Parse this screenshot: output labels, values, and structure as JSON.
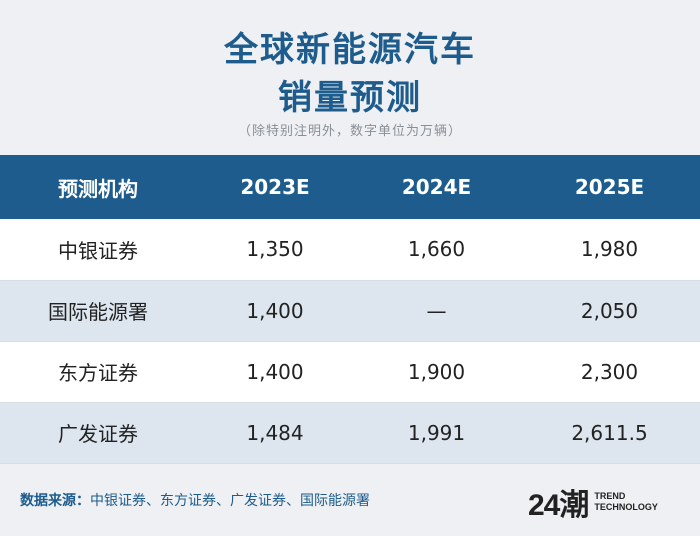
{
  "title_line1": "全球新能源汽车",
  "title_line2": "销量预测",
  "subtitle": "（除特别注明外，数字单位为万辆）",
  "chart_data": {
    "type": "table",
    "columns": [
      "预测机构",
      "2023E",
      "2024E",
      "2025E"
    ],
    "rows": [
      [
        "中银证券",
        "1,350",
        "1,660",
        "1,980"
      ],
      [
        "国际能源署",
        "1,400",
        "—",
        "2,050"
      ],
      [
        "东方证券",
        "1,400",
        "1,900",
        "2,300"
      ],
      [
        "广发证券",
        "1,484",
        "1,991",
        "2,611.5"
      ]
    ]
  },
  "footer": {
    "source_label": "数据来源：",
    "source_text": "中银证券、东方证券、广发证券、国际能源署"
  },
  "logo": {
    "mark": "24潮",
    "line1": "TREND",
    "line2": "TECHNOLOGY"
  },
  "colors": {
    "header_bg": "#1d5c8c",
    "title": "#1d5c8c",
    "stripe": "#dde6ef"
  }
}
